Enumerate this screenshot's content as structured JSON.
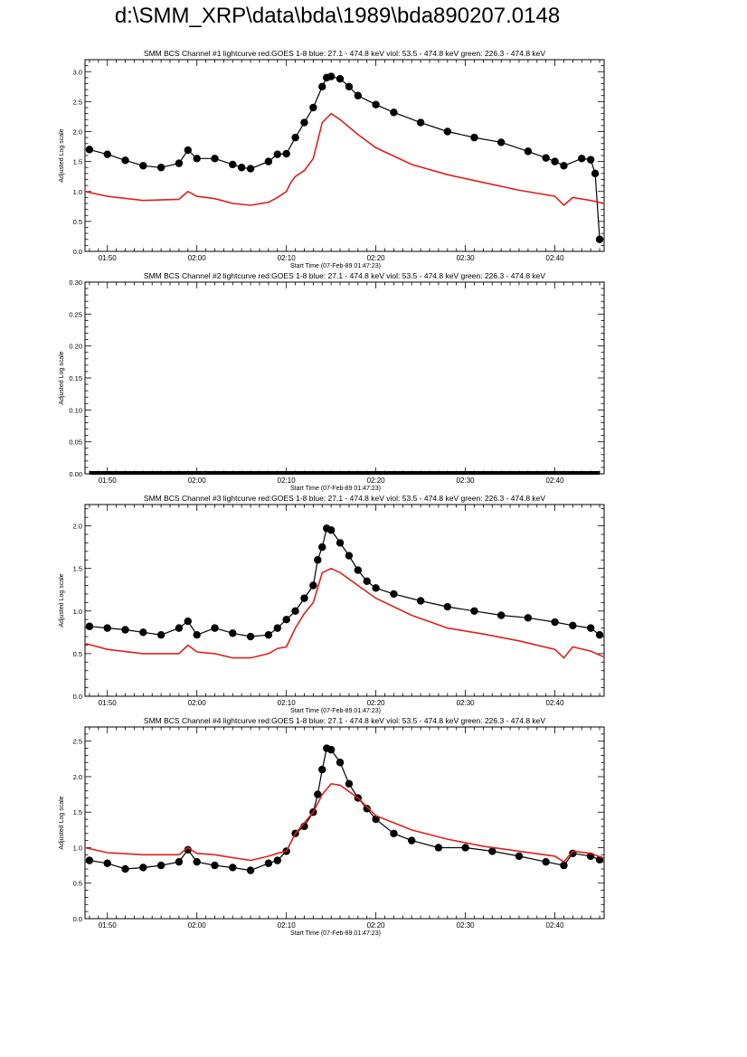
{
  "page": {
    "title": "d:\\SMM_XRP\\data\\bda\\1989\\bda890207.0148"
  },
  "colors": {
    "black": "#000000",
    "red": "#e0201a"
  },
  "chart_data": [
    {
      "type": "line",
      "title": "SMM BCS Channel #1 lightcurve  red:GOES 1-8  blue: 27.1 - 474.8 keV  viol: 53.5 - 474.8 keV  green: 226.3 - 474.8 keV",
      "xlabel": "Start Time (07-Feb-89 01:47:23)",
      "ylabel": "Adjusted Log scale",
      "xlim": [
        "01:47:30",
        "02:45:30"
      ],
      "ylim": [
        0,
        3.2
      ],
      "xticks": [
        "01:50",
        "02:00",
        "02:10",
        "02:20",
        "02:30",
        "02:40"
      ],
      "yticks": [
        "0.0",
        "0.5",
        "1.0",
        "1.5",
        "2.0",
        "2.5",
        "3.0"
      ],
      "series": [
        {
          "style": "dots",
          "color": "#000000",
          "x": [
            "01:48",
            "01:50",
            "01:52",
            "01:54",
            "01:56",
            "01:58",
            "01:59",
            "02:00",
            "02:02",
            "02:04",
            "02:05",
            "02:06",
            "02:08",
            "02:09",
            "02:10",
            "02:11",
            "02:12",
            "02:13",
            "02:14",
            "02:14:30",
            "02:15",
            "02:16",
            "02:17",
            "02:18",
            "02:20",
            "02:22",
            "02:25",
            "02:28",
            "02:31",
            "02:34",
            "02:37",
            "02:39",
            "02:40",
            "02:41",
            "02:43",
            "02:44",
            "02:44:30",
            "02:45"
          ],
          "values": [
            1.7,
            1.62,
            1.52,
            1.43,
            1.4,
            1.47,
            1.69,
            1.55,
            1.55,
            1.45,
            1.4,
            1.38,
            1.5,
            1.62,
            1.63,
            1.9,
            2.15,
            2.4,
            2.75,
            2.9,
            2.92,
            2.88,
            2.75,
            2.6,
            2.45,
            2.32,
            2.15,
            2.0,
            1.9,
            1.82,
            1.67,
            1.56,
            1.5,
            1.43,
            1.55,
            1.53,
            1.3,
            0.2
          ]
        },
        {
          "style": "line",
          "color": "#e0201a",
          "x": [
            "01:47:30",
            "01:50",
            "01:54",
            "01:58",
            "01:59",
            "02:00",
            "02:02",
            "02:04",
            "02:06",
            "02:08",
            "02:09",
            "02:10",
            "02:10:30",
            "02:11",
            "02:12",
            "02:13",
            "02:14",
            "02:15",
            "02:16",
            "02:18",
            "02:20",
            "02:24",
            "02:28",
            "02:32",
            "02:36",
            "02:40",
            "02:41",
            "02:42",
            "02:44",
            "02:45:30"
          ],
          "values": [
            1.0,
            0.92,
            0.85,
            0.87,
            1.0,
            0.92,
            0.88,
            0.8,
            0.77,
            0.82,
            0.9,
            1.0,
            1.15,
            1.25,
            1.35,
            1.55,
            2.15,
            2.3,
            2.2,
            1.95,
            1.73,
            1.45,
            1.28,
            1.15,
            1.02,
            0.92,
            0.77,
            0.9,
            0.85,
            0.8
          ]
        }
      ]
    },
    {
      "type": "line",
      "title": "SMM BCS Channel #2 lightcurve  red:GOES 1-8  blue: 27.1 - 474.8 keV  viol: 53.5 - 474.8 keV  green: 226.3 - 474.8 keV",
      "xlabel": "Start Time (07-Feb-89 01:47:23)",
      "ylabel": "Adjusted Log scale",
      "xlim": [
        "01:47:30",
        "02:45:30"
      ],
      "ylim": [
        0,
        0.3
      ],
      "xticks": [
        "01:50",
        "02:00",
        "02:10",
        "02:20",
        "02:30",
        "02:40"
      ],
      "yticks": [
        "0.00",
        "0.05",
        "0.10",
        "0.15",
        "0.20",
        "0.25",
        "0.30"
      ],
      "series": [
        {
          "style": "flat",
          "color": "#000000",
          "x": [
            "01:48",
            "02:45"
          ],
          "values": [
            0,
            0
          ]
        }
      ]
    },
    {
      "type": "line",
      "title": "SMM BCS Channel #3 lightcurve  red:GOES 1-8  blue: 27.1 - 474.8 keV  viol: 53.5 - 474.8 keV  green: 226.3 - 474.8 keV",
      "xlabel": "Start Time (07-Feb-89 01:47:23)",
      "ylabel": "Adjusted Log scale",
      "xlim": [
        "01:47:30",
        "02:45:30"
      ],
      "ylim": [
        0,
        2.25
      ],
      "xticks": [
        "01:50",
        "02:00",
        "02:10",
        "02:20",
        "02:30",
        "02:40"
      ],
      "yticks": [
        "0.0",
        "0.5",
        "1.0",
        "1.5",
        "2.0"
      ],
      "series": [
        {
          "style": "dots",
          "color": "#000000",
          "x": [
            "01:48",
            "01:50",
            "01:52",
            "01:54",
            "01:56",
            "01:58",
            "01:59",
            "02:00",
            "02:02",
            "02:04",
            "02:06",
            "02:08",
            "02:09",
            "02:10",
            "02:11",
            "02:12",
            "02:13",
            "02:13:30",
            "02:14",
            "02:14:30",
            "02:15",
            "02:16",
            "02:17",
            "02:18",
            "02:19",
            "02:20",
            "02:22",
            "02:25",
            "02:28",
            "02:31",
            "02:34",
            "02:37",
            "02:40",
            "02:42",
            "02:44",
            "02:45"
          ],
          "values": [
            0.82,
            0.8,
            0.78,
            0.75,
            0.72,
            0.8,
            0.88,
            0.72,
            0.8,
            0.74,
            0.7,
            0.72,
            0.8,
            0.9,
            1.0,
            1.15,
            1.3,
            1.6,
            1.75,
            1.97,
            1.95,
            1.8,
            1.65,
            1.48,
            1.35,
            1.27,
            1.2,
            1.12,
            1.05,
            1.0,
            0.95,
            0.92,
            0.87,
            0.83,
            0.8,
            0.72
          ]
        },
        {
          "style": "line",
          "color": "#e0201a",
          "x": [
            "01:47:30",
            "01:50",
            "01:54",
            "01:58",
            "01:59",
            "02:00",
            "02:02",
            "02:04",
            "02:06",
            "02:08",
            "02:09",
            "02:10",
            "02:11",
            "02:12",
            "02:13",
            "02:14",
            "02:15",
            "02:16",
            "02:18",
            "02:20",
            "02:24",
            "02:28",
            "02:32",
            "02:36",
            "02:40",
            "02:41",
            "02:42",
            "02:44",
            "02:45:30"
          ],
          "values": [
            0.62,
            0.55,
            0.5,
            0.5,
            0.6,
            0.52,
            0.5,
            0.45,
            0.45,
            0.5,
            0.56,
            0.58,
            0.8,
            0.97,
            1.1,
            1.45,
            1.5,
            1.45,
            1.3,
            1.15,
            0.95,
            0.8,
            0.73,
            0.65,
            0.55,
            0.45,
            0.58,
            0.53,
            0.46
          ]
        }
      ]
    },
    {
      "type": "line",
      "title": "SMM BCS Channel #4 lightcurve  red:GOES 1-8  blue: 27.1 - 474.8 keV  viol: 53.5 - 474.8 keV  green: 226.3 - 474.8 keV",
      "xlabel": "Start Time (07-Feb-89 01:47:23)",
      "ylabel": "Adjusted Log scale",
      "xlim": [
        "01:47:30",
        "02:45:30"
      ],
      "ylim": [
        0,
        2.7
      ],
      "xticks": [
        "01:50",
        "02:00",
        "02:10",
        "02:20",
        "02:30",
        "02:40"
      ],
      "yticks": [
        "0.0",
        "0.5",
        "1.0",
        "1.5",
        "2.0",
        "2.5"
      ],
      "series": [
        {
          "style": "dots",
          "color": "#000000",
          "x": [
            "01:48",
            "01:50",
            "01:52",
            "01:54",
            "01:56",
            "01:58",
            "01:59",
            "02:00",
            "02:02",
            "02:04",
            "02:06",
            "02:08",
            "02:09",
            "02:10",
            "02:11",
            "02:12",
            "02:13",
            "02:13:30",
            "02:14",
            "02:14:30",
            "02:15",
            "02:16",
            "02:17",
            "02:18",
            "02:19",
            "02:20",
            "02:22",
            "02:24",
            "02:27",
            "02:30",
            "02:33",
            "02:36",
            "02:39",
            "02:41",
            "02:42",
            "02:44",
            "02:45"
          ],
          "values": [
            0.82,
            0.78,
            0.7,
            0.72,
            0.75,
            0.8,
            0.97,
            0.8,
            0.75,
            0.72,
            0.68,
            0.78,
            0.82,
            0.95,
            1.2,
            1.3,
            1.5,
            1.75,
            2.1,
            2.4,
            2.38,
            2.2,
            1.9,
            1.7,
            1.55,
            1.4,
            1.2,
            1.1,
            1.0,
            1.0,
            0.95,
            0.88,
            0.8,
            0.75,
            0.92,
            0.88,
            0.83
          ]
        },
        {
          "style": "line",
          "color": "#e0201a",
          "x": [
            "01:47:30",
            "01:50",
            "01:54",
            "01:58",
            "01:59",
            "02:00",
            "02:02",
            "02:04",
            "02:06",
            "02:08",
            "02:09",
            "02:10",
            "02:11",
            "02:12",
            "02:13",
            "02:14",
            "02:15",
            "02:16",
            "02:18",
            "02:20",
            "02:24",
            "02:28",
            "02:32",
            "02:36",
            "02:40",
            "02:41",
            "02:42",
            "02:44",
            "02:45:30"
          ],
          "values": [
            1.0,
            0.93,
            0.9,
            0.9,
            1.0,
            0.92,
            0.9,
            0.86,
            0.82,
            0.88,
            0.92,
            0.95,
            1.2,
            1.35,
            1.5,
            1.75,
            1.9,
            1.88,
            1.7,
            1.45,
            1.25,
            1.12,
            1.02,
            0.95,
            0.88,
            0.8,
            0.95,
            0.92,
            0.85
          ]
        }
      ]
    }
  ]
}
